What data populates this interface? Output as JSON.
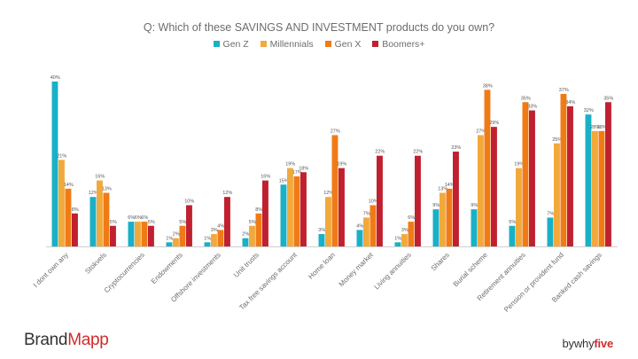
{
  "chart_data": {
    "type": "bar",
    "title": "Q: Which of these SAVINGS AND INVESTMENT products do you own?",
    "categories": [
      "I dont own any",
      "Stokvels",
      "Cryptocurrencies",
      "Endowments",
      "Offshore investments",
      "Unit trusts",
      "Tax free savings account",
      "Home loan",
      "Money market",
      "Living annuities",
      "Shares",
      "Burial scheme",
      "Retirement annuities",
      "Pension or provident fund",
      "Banked cash savings"
    ],
    "series": [
      {
        "name": "Gen Z",
        "color": "#1ab0c6",
        "values": [
          40,
          12,
          6,
          1,
          1,
          2,
          15,
          3,
          4,
          1,
          9,
          9,
          5,
          7,
          32
        ]
      },
      {
        "name": "Millennials",
        "color": "#f2a93b",
        "values": [
          21,
          16,
          6,
          2,
          3,
          5,
          19,
          12,
          7,
          3,
          13,
          27,
          19,
          25,
          28
        ]
      },
      {
        "name": "Gen X",
        "color": "#f07b16",
        "values": [
          14,
          13,
          6,
          5,
          4,
          8,
          17,
          27,
          10,
          6,
          14,
          38,
          35,
          37,
          28
        ]
      },
      {
        "name": "Boomers+",
        "color": "#c0202f",
        "values": [
          8,
          5,
          5,
          10,
          12,
          16,
          18,
          19,
          22,
          22,
          23,
          29,
          33,
          34,
          35
        ]
      }
    ],
    "value_suffix": "%",
    "ylim": [
      0,
      40
    ],
    "grid": false,
    "legend_position": "top"
  },
  "branding": {
    "left_logo_part1": "Brand",
    "left_logo_part2": "Mapp",
    "right_logo_part1": "bywhy",
    "right_logo_part2": "five"
  }
}
